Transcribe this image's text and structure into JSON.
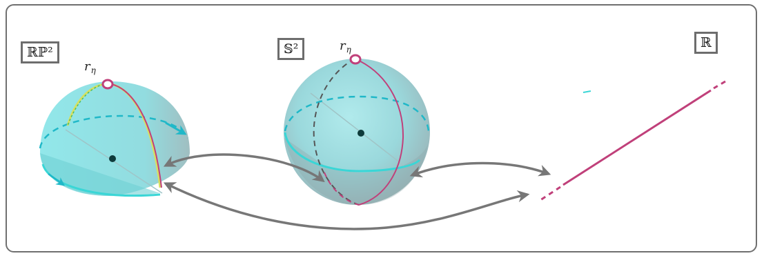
{
  "labels": {
    "rp2": "ℝℙ²",
    "s2": "𝕊²",
    "r": "ℝ",
    "r_eta_left": "r",
    "r_eta_left_sub": "η",
    "r_eta_mid": "r",
    "r_eta_mid_sub": "η"
  },
  "colors": {
    "frame": "#6f6f6f",
    "cyan": "#3ad6d6",
    "cyan_dark": "#20b8c8",
    "magenta": "#c0407a",
    "yellow": "#d6e060",
    "arrow": "#777777",
    "center": "#0e3b3b"
  }
}
